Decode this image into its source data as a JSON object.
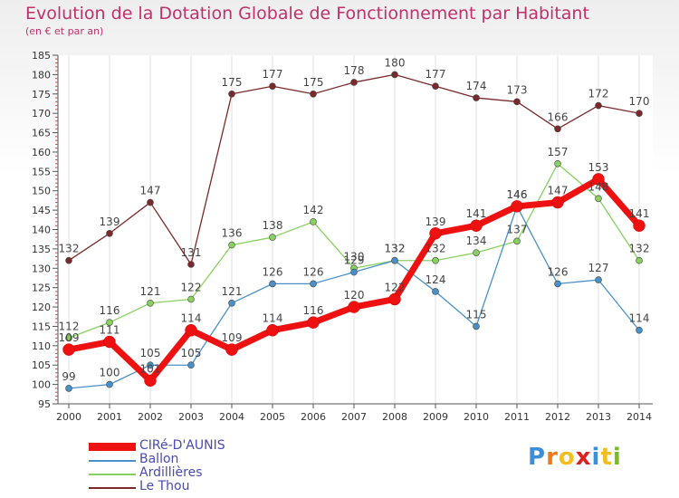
{
  "title": "Evolution de la Dotation Globale de Fonctionnement par Habitant",
  "subtitle": "(en € et par an)",
  "logo": {
    "letters": [
      "P",
      "r",
      "o",
      "x",
      "i",
      "t",
      "i"
    ],
    "colors": [
      "#3a8fd8",
      "#f07a18",
      "#f0c020",
      "#e02020",
      "#3a8fd8",
      "#f0c020",
      "#7abc28"
    ]
  },
  "chart_data": {
    "type": "line",
    "title": "Evolution de la Dotation Globale de Fonctionnement par Habitant",
    "subtitle": "(en € et par an)",
    "x": [
      2000,
      2001,
      2002,
      2003,
      2004,
      2005,
      2006,
      2007,
      2008,
      2009,
      2010,
      2011,
      2012,
      2013,
      2014
    ],
    "x_tick_labels": [
      "2000",
      "2001",
      "2002",
      "2003",
      "2004",
      "2005",
      "2006",
      "2007",
      "2008",
      "2009",
      "2010",
      "2011",
      "2012",
      "2013",
      "2014"
    ],
    "y_ticks": [
      95,
      100,
      105,
      110,
      115,
      120,
      125,
      130,
      135,
      140,
      145,
      150,
      155,
      160,
      165,
      170,
      175,
      180,
      185
    ],
    "ylim": [
      95,
      185
    ],
    "grid": "vertical",
    "legend_position": "bottom-left",
    "series": [
      {
        "name": "Le Thou",
        "color": "#7a2a2a",
        "values": [
          132,
          139,
          147,
          131,
          175,
          177,
          175,
          178,
          180,
          177,
          174,
          173,
          166,
          172,
          170
        ]
      },
      {
        "name": "Ardillières",
        "color": "#88d060",
        "values": [
          112,
          116,
          121,
          122,
          136,
          138,
          142,
          130,
          132,
          132,
          134,
          137,
          157,
          148,
          132
        ]
      },
      {
        "name": "Ballon",
        "color": "#4a90c8",
        "values": [
          99,
          100,
          105,
          105,
          121,
          126,
          126,
          129,
          132,
          124,
          115,
          146,
          126,
          127,
          114
        ]
      },
      {
        "name": "CIRé-D'AUNIS",
        "color": "#ee1111",
        "values": [
          109,
          111,
          101,
          114,
          109,
          114,
          116,
          120,
          122,
          139,
          141,
          146,
          147,
          153,
          141
        ]
      }
    ],
    "legend_order": [
      "CIRé-D'AUNIS",
      "Ballon",
      "Ardillières",
      "Le Thou"
    ]
  }
}
